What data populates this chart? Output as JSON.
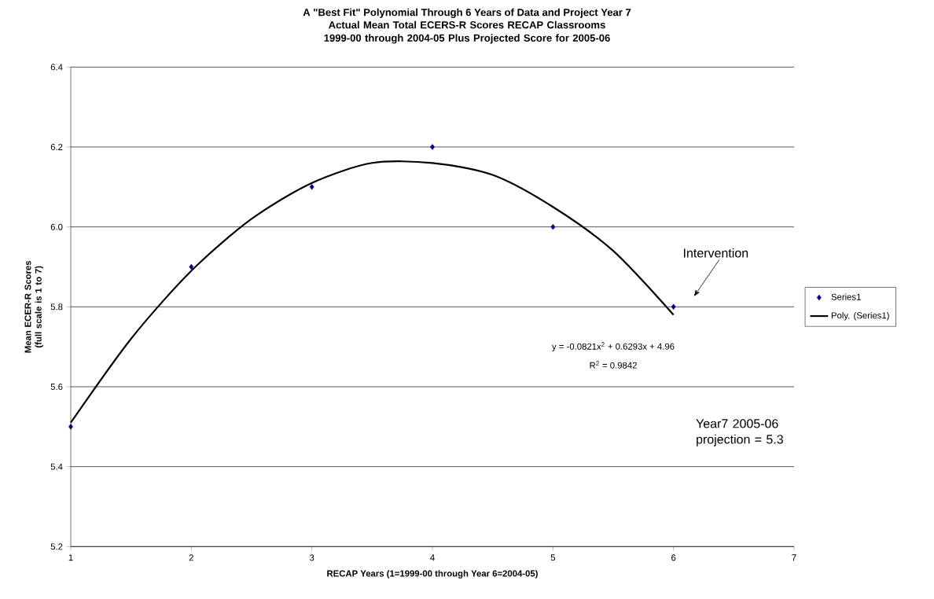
{
  "chart_data": {
    "type": "scatter",
    "title": "A \"Best Fit\" Polynomial Through 6 Years of Data and Project Year 7",
    "subtitle": "Actual Mean Total ECERS-R Scores RECAP Classrooms 1999-00 through 2004-05 Plus Projected Score for 2005-06",
    "xlabel": "RECAP Years (1=1999-00 through Year 6=2004-05)",
    "ylabel": "Mean ECER-R Scores (full scale is 1 to 7)",
    "x": [
      1,
      2,
      3,
      4,
      5,
      6
    ],
    "series": [
      {
        "name": "Series1",
        "color": "#000080",
        "marker": "diamond",
        "values": [
          5.5,
          5.9,
          6.1,
          6.2,
          6.0,
          5.8
        ]
      },
      {
        "name": "Poly. (Series1)",
        "type": "line",
        "color": "#000000",
        "line_style": "solid",
        "marker": "none",
        "x": [
          1,
          1.5,
          2,
          2.5,
          3,
          3.5,
          4,
          4.5,
          5,
          5.5,
          6
        ],
        "values": [
          5.51,
          5.72,
          5.89,
          6.02,
          6.11,
          6.16,
          6.16,
          6.13,
          6.05,
          5.94,
          5.78
        ]
      }
    ],
    "xlim": [
      1,
      7
    ],
    "xticks": [
      1,
      2,
      3,
      4,
      5,
      6,
      7
    ],
    "ylim": [
      5.2,
      6.4
    ],
    "yticks": [
      {
        "value": 5.2,
        "label": "5.2"
      },
      {
        "value": 5.4,
        "label": "5.4"
      },
      {
        "value": 5.6,
        "label": "5.6"
      },
      {
        "value": 5.8,
        "label": "5.8"
      },
      {
        "value": 6.0,
        "label": "6.0"
      },
      {
        "value": 6.2,
        "label": "6.2"
      },
      {
        "value": 6.4,
        "label": "6.4"
      }
    ],
    "grid": "y",
    "legend": "right",
    "annotations": [
      "y = -0.0821x$^{2}$ + 0.6293x + 4.96",
      "R$^{2}$ = 0.9842",
      "Intervention",
      "Year7 2005-06 projection = 5.3"
    ]
  }
}
